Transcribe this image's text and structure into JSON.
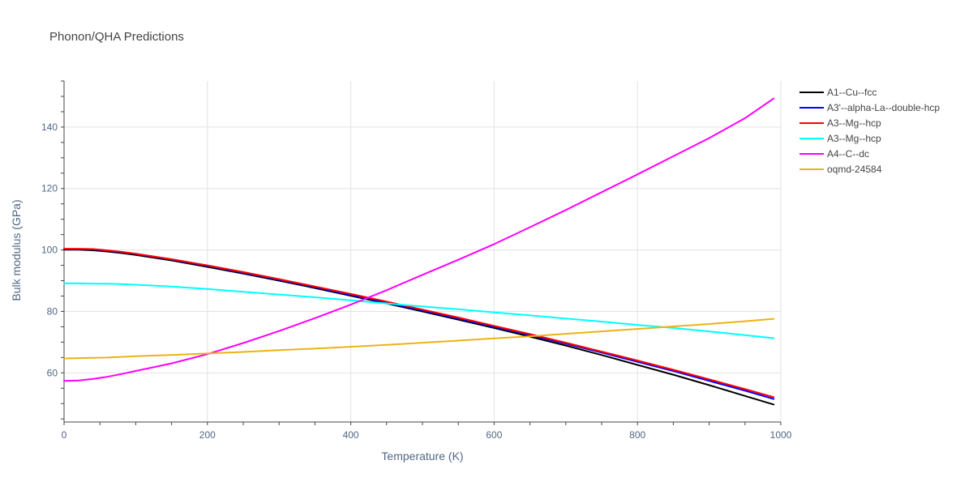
{
  "chart_data": {
    "type": "line",
    "title": "Phonon/QHA Predictions",
    "xlabel": "Temperature (K)",
    "ylabel": "Bulk modulus (GPa)",
    "xlim": [
      0,
      1000
    ],
    "ylim": [
      44,
      155
    ],
    "x_ticks": [
      0,
      200,
      400,
      600,
      800,
      1000
    ],
    "y_ticks": [
      60,
      80,
      100,
      120,
      140
    ],
    "grid": true,
    "legend_position": "top-right",
    "series": [
      {
        "name": "A1--Cu--fcc",
        "color": "#000000",
        "x": [
          0,
          20,
          40,
          60,
          80,
          100,
          150,
          200,
          250,
          300,
          350,
          400,
          450,
          500,
          550,
          600,
          650,
          700,
          750,
          800,
          850,
          900,
          950,
          990
        ],
        "y": [
          100.1,
          100.1,
          99.9,
          99.5,
          99.0,
          98.4,
          96.6,
          94.5,
          92.3,
          90.0,
          87.6,
          85.1,
          82.6,
          80.0,
          77.3,
          74.6,
          71.8,
          68.9,
          65.8,
          62.6,
          59.4,
          56.0,
          52.5,
          49.7
        ]
      },
      {
        "name": "A3'--alpha-La--double-hcp",
        "color": "#0000ff",
        "x": [
          0,
          20,
          40,
          60,
          80,
          100,
          150,
          200,
          250,
          300,
          350,
          400,
          450,
          500,
          550,
          600,
          650,
          700,
          750,
          800,
          850,
          900,
          950,
          990
        ],
        "y": [
          100.3,
          100.3,
          100.2,
          99.8,
          99.3,
          98.7,
          96.9,
          94.8,
          92.6,
          90.3,
          87.9,
          85.4,
          82.9,
          80.3,
          77.7,
          75.0,
          72.3,
          69.5,
          66.6,
          63.6,
          60.6,
          57.4,
          54.2,
          51.5
        ]
      },
      {
        "name": "A3--Mg--hcp",
        "color": "#ff0000",
        "x": [
          0,
          20,
          40,
          60,
          80,
          100,
          150,
          200,
          250,
          300,
          350,
          400,
          450,
          500,
          550,
          600,
          650,
          700,
          750,
          800,
          850,
          900,
          950,
          990
        ],
        "y": [
          100.4,
          100.4,
          100.3,
          99.9,
          99.4,
          98.8,
          97.0,
          95.0,
          92.8,
          90.5,
          88.1,
          85.7,
          83.2,
          80.6,
          78.0,
          75.3,
          72.6,
          69.8,
          66.9,
          64.0,
          61.0,
          57.9,
          54.7,
          52.1
        ]
      },
      {
        "name": "A3--Mg--hcp",
        "color": "#00ffff",
        "x": [
          0,
          20,
          40,
          60,
          80,
          100,
          150,
          200,
          250,
          300,
          350,
          400,
          450,
          500,
          550,
          600,
          650,
          700,
          750,
          800,
          850,
          900,
          950,
          990
        ],
        "y": [
          89.1,
          89.1,
          89.0,
          89.0,
          88.9,
          88.7,
          88.1,
          87.3,
          86.4,
          85.5,
          84.6,
          83.6,
          82.6,
          81.6,
          80.7,
          79.7,
          78.7,
          77.7,
          76.7,
          75.6,
          74.6,
          73.5,
          72.3,
          71.3
        ]
      },
      {
        "name": "A4--C--dc",
        "color": "#ff00ff",
        "x": [
          0,
          20,
          40,
          60,
          80,
          100,
          150,
          200,
          250,
          300,
          350,
          400,
          450,
          500,
          550,
          600,
          650,
          700,
          750,
          800,
          850,
          900,
          950,
          990
        ],
        "y": [
          57.4,
          57.5,
          58.0,
          58.7,
          59.6,
          60.6,
          63.1,
          66.1,
          69.7,
          73.6,
          77.8,
          82.2,
          86.9,
          91.9,
          96.8,
          101.9,
          107.4,
          113.0,
          118.8,
          124.6,
          130.5,
          136.4,
          142.9,
          149.3
        ]
      },
      {
        "name": "oqmd-24584",
        "color": "#ebb314",
        "x": [
          0,
          20,
          40,
          60,
          80,
          100,
          150,
          200,
          250,
          300,
          350,
          400,
          450,
          500,
          550,
          600,
          650,
          700,
          750,
          800,
          850,
          900,
          950,
          990
        ],
        "y": [
          64.7,
          64.8,
          64.9,
          65.0,
          65.2,
          65.4,
          65.8,
          66.3,
          66.8,
          67.4,
          67.9,
          68.5,
          69.1,
          69.8,
          70.5,
          71.2,
          71.9,
          72.7,
          73.5,
          74.3,
          75.1,
          75.9,
          76.8,
          77.6
        ]
      }
    ]
  }
}
